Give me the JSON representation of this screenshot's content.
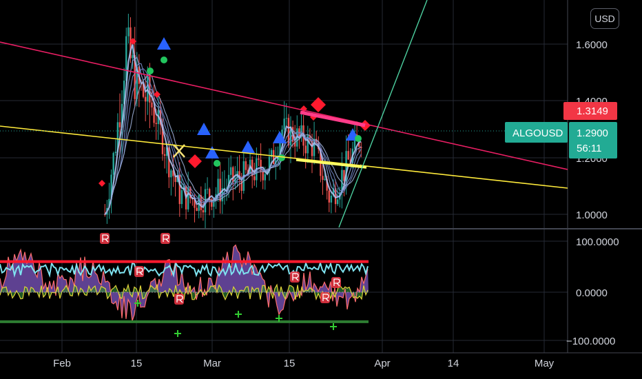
{
  "currency_button": "USD",
  "price_axis": {
    "ticks": [
      "1.6000",
      "1.4000",
      "1.2000",
      "1.0000"
    ]
  },
  "oscillator_axis": {
    "ticks": [
      "100.0000",
      "0.0000",
      "−100.0000"
    ]
  },
  "time_axis": {
    "ticks": [
      "Feb",
      "15",
      "Mar",
      "15",
      "Apr",
      "14",
      "May"
    ]
  },
  "labels": {
    "last_price_red": "1.3149",
    "symbol": "ALGOUSD",
    "symbol_price": "1.2900",
    "countdown": "56:11"
  },
  "colors": {
    "background": "#000000",
    "grid": "#2a2e39",
    "up_candle": "#26a69a",
    "down_candle": "#ef5350",
    "resistance_line": "#e91e63",
    "support_line": "#ffeb3b",
    "uptrend_line": "#4dd0a0",
    "label_red": "#f23645",
    "label_teal": "#22ab94",
    "osc_fill": "#7e57c2"
  },
  "chart_data": {
    "type": "candlestick",
    "symbol": "ALGOUSD",
    "y_axis": {
      "range": [
        0.95,
        1.72
      ],
      "ticks": [
        1.0,
        1.2,
        1.4,
        1.6
      ]
    },
    "x_axis": {
      "ticks": [
        "Feb",
        "15",
        "Mar",
        "15",
        "Apr",
        "14",
        "May"
      ]
    },
    "oscillator": {
      "range": [
        -110,
        115
      ],
      "ticks": [
        100,
        0,
        -100
      ]
    },
    "last_price": 1.29,
    "marked_price": 1.3149,
    "approx_close_series": [
      {
        "date": "2021-02-09",
        "close": 1.0
      },
      {
        "date": "2021-02-11",
        "close": 1.25
      },
      {
        "date": "2021-02-13",
        "close": 1.6
      },
      {
        "date": "2021-02-15",
        "close": 1.45
      },
      {
        "date": "2021-02-18",
        "close": 1.38
      },
      {
        "date": "2021-02-21",
        "close": 1.18
      },
      {
        "date": "2021-02-23",
        "close": 1.07
      },
      {
        "date": "2021-02-26",
        "close": 1.05
      },
      {
        "date": "2021-03-02",
        "close": 1.08
      },
      {
        "date": "2021-03-05",
        "close": 1.12
      },
      {
        "date": "2021-03-09",
        "close": 1.15
      },
      {
        "date": "2021-03-12",
        "close": 1.18
      },
      {
        "date": "2021-03-14",
        "close": 1.3
      },
      {
        "date": "2021-03-17",
        "close": 1.27
      },
      {
        "date": "2021-03-20",
        "close": 1.24
      },
      {
        "date": "2021-03-23",
        "close": 1.05
      },
      {
        "date": "2021-03-26",
        "close": 1.17
      },
      {
        "date": "2021-03-29",
        "close": 1.29
      }
    ]
  }
}
